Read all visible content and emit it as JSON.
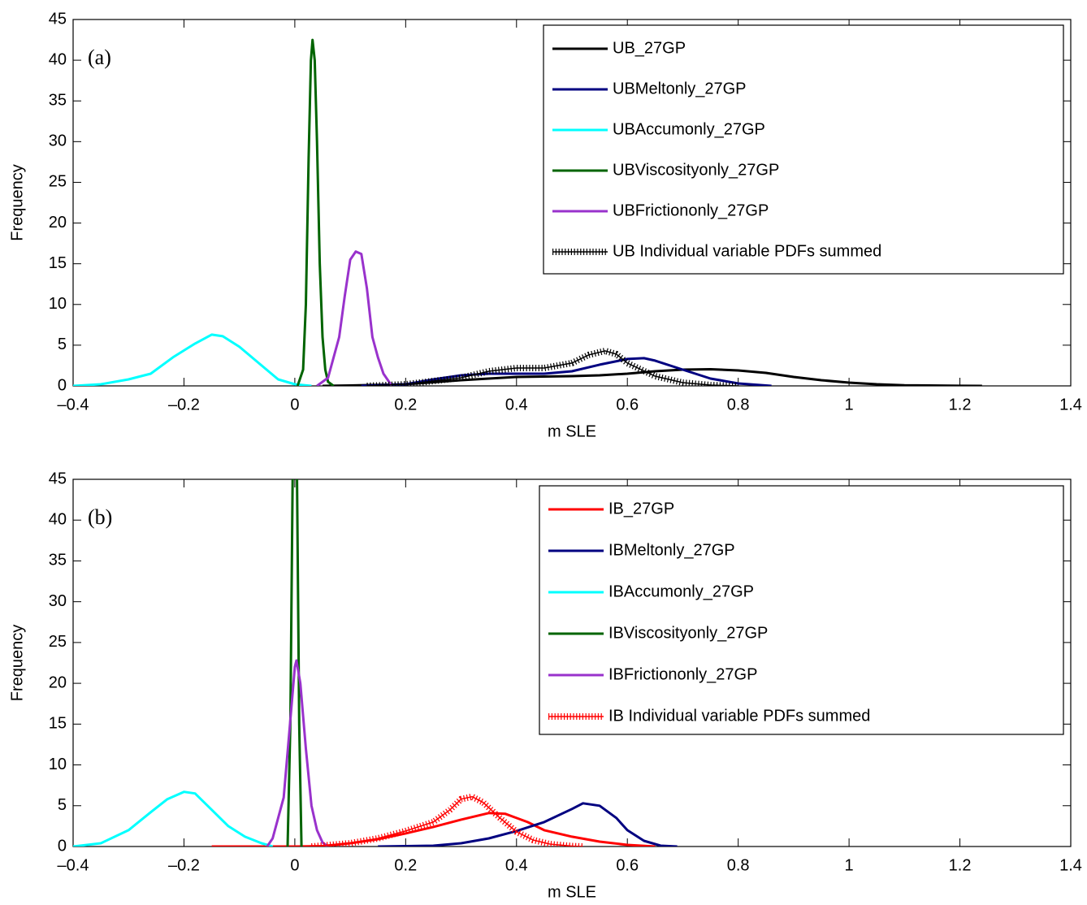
{
  "chart_data": [
    {
      "type": "line",
      "annotation": "(a)",
      "xlabel": "m SLE",
      "ylabel": "Frequency",
      "xlim": [
        -0.4,
        1.4
      ],
      "xticks": [
        {
          "value": -0.4,
          "label": "–0.4"
        },
        {
          "value": -0.2,
          "label": "–0.2"
        },
        0,
        0.2,
        0.4,
        0.6,
        0.8,
        1,
        1.2,
        1.4
      ],
      "ylim": [
        0,
        45
      ],
      "yticks": [
        0,
        5,
        10,
        15,
        20,
        25,
        30,
        35,
        40,
        45
      ],
      "legend": "upper right",
      "series": [
        {
          "name": "UB_27GP",
          "color": "#000000",
          "style": "solid",
          "x": [
            0.05,
            0.1,
            0.2,
            0.3,
            0.4,
            0.5,
            0.55,
            0.6,
            0.65,
            0.7,
            0.75,
            0.8,
            0.85,
            0.9,
            0.95,
            1.0,
            1.05,
            1.1,
            1.2,
            1.24
          ],
          "values": [
            0,
            0.05,
            0.2,
            0.7,
            1.1,
            1.2,
            1.3,
            1.5,
            1.8,
            2.0,
            2.05,
            1.9,
            1.6,
            1.1,
            0.7,
            0.4,
            0.2,
            0.08,
            0.01,
            0
          ]
        },
        {
          "name": "UBMeltonly_27GP",
          "color": "#000080",
          "style": "solid",
          "x": [
            0.12,
            0.2,
            0.25,
            0.3,
            0.35,
            0.4,
            0.45,
            0.5,
            0.55,
            0.6,
            0.63,
            0.65,
            0.7,
            0.75,
            0.8,
            0.86
          ],
          "values": [
            0,
            0.2,
            0.8,
            1.3,
            1.5,
            1.5,
            1.5,
            1.8,
            2.6,
            3.3,
            3.4,
            3.1,
            2.0,
            0.9,
            0.3,
            0
          ]
        },
        {
          "name": "UBAccumonly_27GP",
          "color": "#00ffff",
          "style": "solid",
          "x": [
            -0.4,
            -0.35,
            -0.3,
            -0.26,
            -0.22,
            -0.18,
            -0.15,
            -0.13,
            -0.1,
            -0.06,
            -0.03,
            0,
            0.03
          ],
          "values": [
            0,
            0.2,
            0.8,
            1.5,
            3.5,
            5.2,
            6.3,
            6.1,
            4.8,
            2.5,
            0.8,
            0.2,
            0
          ]
        },
        {
          "name": "UBViscosityonly_27GP",
          "color": "#006400",
          "style": "solid",
          "x": [
            0.005,
            0.015,
            0.02,
            0.025,
            0.029,
            0.032,
            0.036,
            0.04,
            0.045,
            0.05,
            0.055,
            0.06,
            0.07
          ],
          "values": [
            0,
            2,
            10,
            28,
            40,
            42.5,
            40,
            30,
            15,
            6,
            2,
            0.5,
            0
          ]
        },
        {
          "name": "UBFrictiononly_27GP",
          "color": "#9932cc",
          "style": "solid",
          "x": [
            0.04,
            0.06,
            0.08,
            0.09,
            0.1,
            0.11,
            0.12,
            0.13,
            0.14,
            0.15,
            0.16,
            0.175
          ],
          "values": [
            0,
            1,
            6,
            11,
            15.5,
            16.5,
            16.2,
            12,
            6,
            3.5,
            1.5,
            0
          ]
        },
        {
          "name": "UB Individual variable PDFs summed",
          "color": "#000000",
          "style": "hatched",
          "x": [
            0.13,
            0.2,
            0.3,
            0.35,
            0.4,
            0.45,
            0.5,
            0.53,
            0.56,
            0.58,
            0.6,
            0.65,
            0.7,
            0.75,
            0.8
          ],
          "values": [
            0,
            0.2,
            1.0,
            1.8,
            2.2,
            2.2,
            2.8,
            3.8,
            4.3,
            3.9,
            2.8,
            1.2,
            0.4,
            0.1,
            0
          ]
        }
      ]
    },
    {
      "type": "line",
      "annotation": "(b)",
      "xlabel": "m SLE",
      "ylabel": "Frequency",
      "xlim": [
        -0.4,
        1.4
      ],
      "xticks": [
        {
          "value": -0.4,
          "label": "–0.4"
        },
        {
          "value": -0.2,
          "label": "–0.2"
        },
        0,
        0.2,
        0.4,
        0.6,
        0.8,
        1,
        1.2,
        1.4
      ],
      "ylim": [
        0,
        45
      ],
      "yticks": [
        0,
        5,
        10,
        15,
        20,
        25,
        30,
        35,
        40,
        45
      ],
      "legend": "upper right",
      "series": [
        {
          "name": "IB_27GP",
          "color": "#ff0000",
          "style": "solid",
          "x": [
            -0.15,
            0,
            0.05,
            0.1,
            0.15,
            0.2,
            0.25,
            0.3,
            0.35,
            0.38,
            0.42,
            0.45,
            0.5,
            0.55,
            0.6,
            0.65
          ],
          "values": [
            0,
            0,
            0.05,
            0.4,
            0.9,
            1.6,
            2.4,
            3.3,
            4.1,
            4.0,
            3.0,
            2.0,
            1.2,
            0.6,
            0.2,
            0
          ]
        },
        {
          "name": "IBMeltonly_27GP",
          "color": "#000080",
          "style": "solid",
          "x": [
            0.15,
            0.25,
            0.3,
            0.35,
            0.4,
            0.45,
            0.5,
            0.52,
            0.55,
            0.58,
            0.6,
            0.63,
            0.66,
            0.69
          ],
          "values": [
            0,
            0.1,
            0.4,
            1.0,
            1.9,
            3.0,
            4.6,
            5.3,
            5.0,
            3.5,
            2.0,
            0.7,
            0.1,
            0
          ]
        },
        {
          "name": "IBAccumonly_27GP",
          "color": "#00ffff",
          "style": "solid",
          "x": [
            -0.4,
            -0.35,
            -0.3,
            -0.26,
            -0.23,
            -0.2,
            -0.18,
            -0.15,
            -0.12,
            -0.09,
            -0.06,
            -0.04
          ],
          "values": [
            0,
            0.4,
            2.0,
            4.2,
            5.8,
            6.7,
            6.5,
            4.5,
            2.5,
            1.2,
            0.4,
            0
          ]
        },
        {
          "name": "IBViscosityonly_27GP",
          "color": "#006400",
          "style": "solid",
          "x": [
            -0.013,
            -0.008,
            -0.004,
            0,
            0.004,
            0.008,
            0.012
          ],
          "values": [
            0,
            15,
            45,
            60,
            45,
            15,
            0
          ]
        },
        {
          "name": "IBFrictiononly_27GP",
          "color": "#9932cc",
          "style": "solid",
          "x": [
            -0.05,
            -0.04,
            -0.02,
            -0.01,
            0,
            0.003,
            0.01,
            0.02,
            0.03,
            0.04,
            0.05,
            0.06
          ],
          "values": [
            0,
            1,
            6,
            14,
            22,
            22.8,
            20,
            12,
            5,
            2,
            0.5,
            0
          ]
        },
        {
          "name": "IB Individual variable PDFs summed",
          "color": "#ff0000",
          "style": "hatched",
          "x": [
            0.03,
            0.1,
            0.15,
            0.2,
            0.25,
            0.28,
            0.3,
            0.32,
            0.34,
            0.37,
            0.4,
            0.43,
            0.46,
            0.5,
            0.52
          ],
          "values": [
            0,
            0.4,
            1.0,
            1.9,
            3.0,
            4.5,
            5.8,
            6.1,
            5.4,
            3.5,
            1.8,
            0.8,
            0.3,
            0.05,
            0
          ]
        }
      ]
    }
  ]
}
